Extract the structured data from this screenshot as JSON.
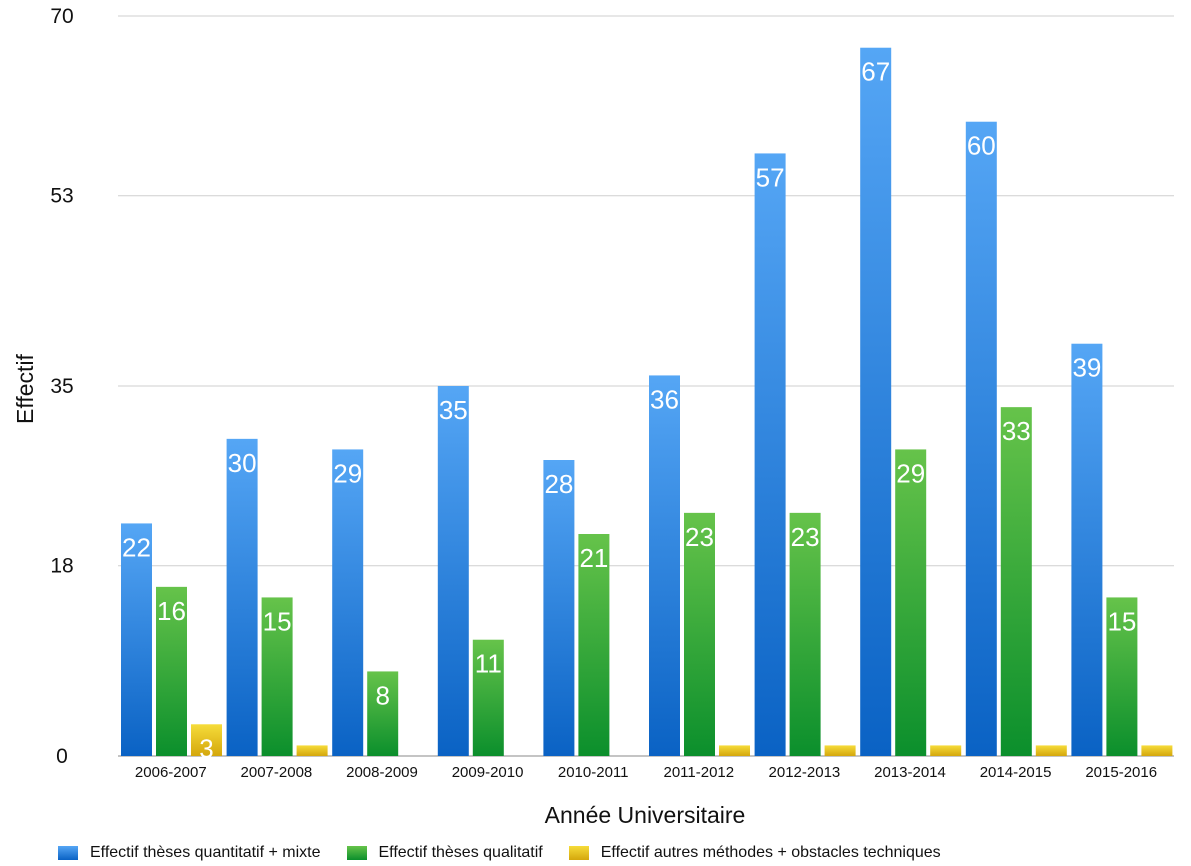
{
  "chart_data": {
    "type": "bar",
    "title": "",
    "xlabel": "Année Universitaire",
    "ylabel": "Effectif",
    "ylim": [
      0,
      70
    ],
    "yticks": [
      "0",
      "18",
      "35",
      "53",
      "70"
    ],
    "grid": true,
    "legend_position": "bottom",
    "categories": [
      "2006-2007",
      "2007-2008",
      "2008-2009",
      "2009-2010",
      "2010-2011",
      "2011-2012",
      "2012-2013",
      "2013-2014",
      "2014-2015",
      "2015-2016"
    ],
    "series": [
      {
        "name": "Effectif thèses quantitatif + mixte",
        "color": "#2f86e0",
        "values": [
          22,
          30,
          29,
          35,
          28,
          36,
          57,
          67,
          60,
          39
        ],
        "labels": [
          "22",
          "30",
          "29",
          "35",
          "28",
          "36",
          "57",
          "67",
          "60",
          "39"
        ]
      },
      {
        "name": "Effectif thèses qualitatif",
        "color": "#3aa83a",
        "values": [
          16,
          15,
          8,
          11,
          21,
          23,
          23,
          29,
          33,
          15
        ],
        "labels": [
          "16",
          "15",
          "8",
          "11",
          "21",
          "23",
          "23",
          "29",
          "33",
          "15"
        ]
      },
      {
        "name": "Effectif autres méthodes + obstacles techniques",
        "color": "#e8c21a",
        "values": [
          3,
          1,
          0,
          0,
          0,
          1,
          1,
          1,
          1,
          1
        ],
        "labels": [
          "3",
          "",
          "",
          "",
          "",
          "",
          "",
          "",
          "",
          ""
        ]
      }
    ]
  }
}
